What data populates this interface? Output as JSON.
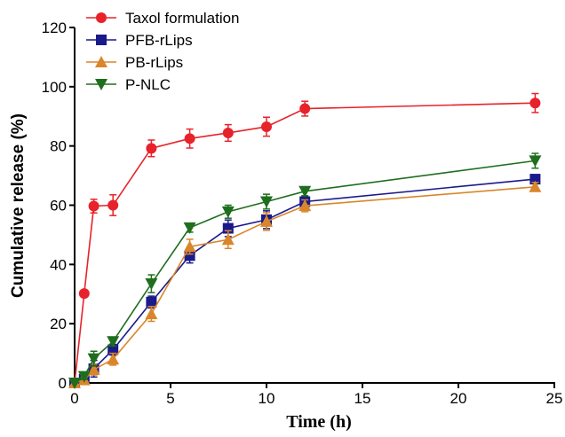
{
  "chart_data": {
    "type": "line",
    "title": "",
    "xlabel": "Time (h)",
    "ylabel": "Cumulative release (%)",
    "xlim": [
      0,
      25
    ],
    "ylim": [
      0,
      120
    ],
    "xticks": [
      0,
      5,
      10,
      15,
      20,
      25
    ],
    "yticks": [
      0,
      20,
      40,
      60,
      80,
      100,
      120
    ],
    "grid": false,
    "legend_position": "top-left",
    "x": [
      0,
      0.5,
      1,
      2,
      4,
      6,
      8,
      10,
      12,
      24
    ],
    "series": [
      {
        "name": "Taxol formulation",
        "color": "#e8222a",
        "marker": "circle",
        "values": [
          0,
          30.2,
          59.7,
          60.0,
          79.2,
          82.5,
          84.4,
          86.5,
          92.6,
          94.5
        ],
        "errors": [
          0,
          0.8,
          2.3,
          3.5,
          2.8,
          3.2,
          2.8,
          3.2,
          2.5,
          3.2
        ]
      },
      {
        "name": "PFB-rLips",
        "color": "#1a1a8c",
        "marker": "square",
        "values": [
          0,
          1.2,
          4.8,
          11.2,
          27.3,
          43.0,
          52.2,
          55.1,
          61.2,
          68.8
        ],
        "errors": [
          0,
          1.5,
          2.8,
          1.8,
          2.0,
          2.5,
          2.8,
          3.0,
          1.5,
          1.5
        ]
      },
      {
        "name": "PB-rLips",
        "color": "#d9862a",
        "marker": "triangle-up",
        "values": [
          0,
          1.0,
          4.5,
          8.0,
          23.3,
          46.0,
          48.4,
          54.5,
          59.8,
          66.2
        ],
        "errors": [
          0,
          1.0,
          1.8,
          2.0,
          2.5,
          2.5,
          3.0,
          3.0,
          2.0,
          1.5
        ]
      },
      {
        "name": "P-NLC",
        "color": "#1e6e1e",
        "marker": "triangle-down",
        "values": [
          0,
          2.2,
          8.2,
          14.0,
          33.5,
          52.4,
          57.8,
          61.2,
          64.7,
          75.0
        ],
        "errors": [
          0,
          1.0,
          2.5,
          1.5,
          3.0,
          1.5,
          2.2,
          2.5,
          1.5,
          2.5
        ]
      }
    ]
  }
}
